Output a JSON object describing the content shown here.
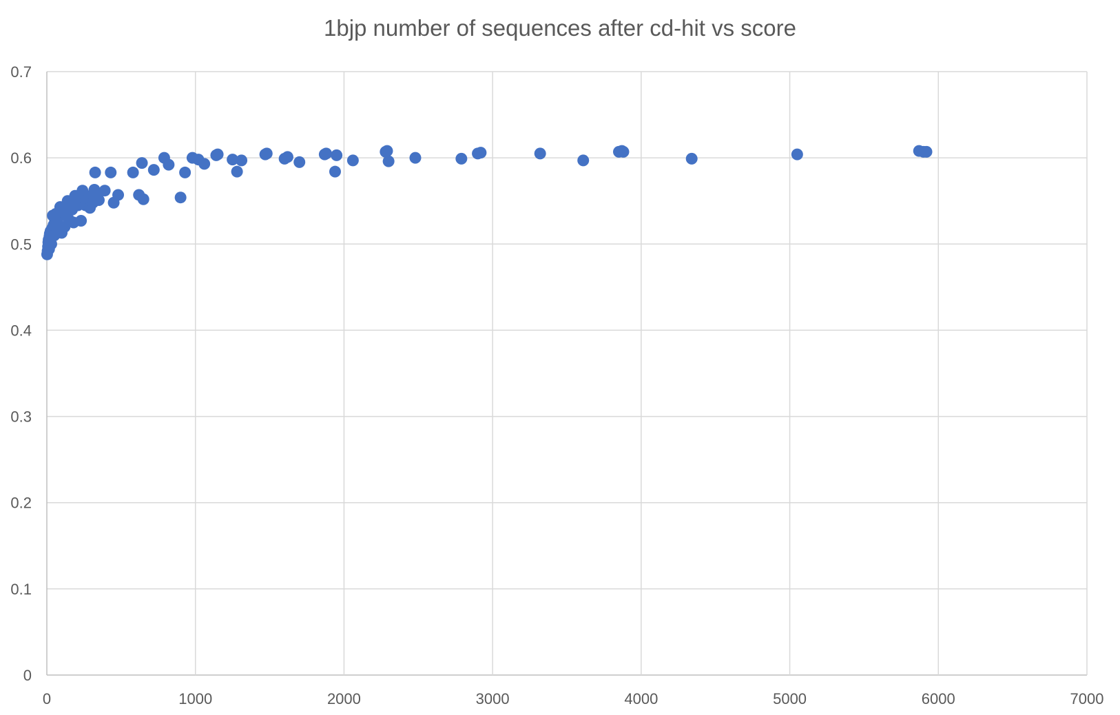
{
  "chart_data": {
    "type": "scatter",
    "title": "1bjp number of sequences after cd-hit vs score",
    "xlabel": "",
    "ylabel": "",
    "xlim": [
      0,
      7000
    ],
    "ylim": [
      0,
      0.7
    ],
    "x_ticks": [
      "0",
      "1000",
      "2000",
      "3000",
      "4000",
      "5000",
      "6000",
      "7000"
    ],
    "y_ticks": [
      "0",
      "0.1",
      "0.2",
      "0.3",
      "0.4",
      "0.5",
      "0.6",
      "0.7"
    ],
    "grid": true,
    "legend": "none",
    "marker_color": "#4472C4",
    "points": [
      [
        2,
        0.488
      ],
      [
        5,
        0.492
      ],
      [
        8,
        0.497
      ],
      [
        10,
        0.502
      ],
      [
        12,
        0.505
      ],
      [
        15,
        0.494
      ],
      [
        18,
        0.509
      ],
      [
        20,
        0.512
      ],
      [
        25,
        0.515
      ],
      [
        30,
        0.5
      ],
      [
        35,
        0.518
      ],
      [
        40,
        0.533
      ],
      [
        45,
        0.522
      ],
      [
        50,
        0.51
      ],
      [
        55,
        0.528
      ],
      [
        60,
        0.535
      ],
      [
        70,
        0.524
      ],
      [
        80,
        0.531
      ],
      [
        90,
        0.543
      ],
      [
        100,
        0.513
      ],
      [
        110,
        0.537
      ],
      [
        120,
        0.52
      ],
      [
        130,
        0.534
      ],
      [
        140,
        0.55
      ],
      [
        150,
        0.528
      ],
      [
        160,
        0.546
      ],
      [
        170,
        0.54
      ],
      [
        180,
        0.525
      ],
      [
        190,
        0.556
      ],
      [
        200,
        0.552
      ],
      [
        210,
        0.545
      ],
      [
        220,
        0.548
      ],
      [
        230,
        0.527
      ],
      [
        240,
        0.562
      ],
      [
        250,
        0.558
      ],
      [
        260,
        0.545
      ],
      [
        280,
        0.553
      ],
      [
        290,
        0.542
      ],
      [
        310,
        0.548
      ],
      [
        320,
        0.563
      ],
      [
        325,
        0.583
      ],
      [
        340,
        0.556
      ],
      [
        350,
        0.551
      ],
      [
        390,
        0.562
      ],
      [
        430,
        0.583
      ],
      [
        450,
        0.548
      ],
      [
        480,
        0.557
      ],
      [
        580,
        0.583
      ],
      [
        620,
        0.557
      ],
      [
        640,
        0.594
      ],
      [
        650,
        0.552
      ],
      [
        720,
        0.586
      ],
      [
        790,
        0.6
      ],
      [
        820,
        0.592
      ],
      [
        900,
        0.554
      ],
      [
        930,
        0.583
      ],
      [
        980,
        0.6
      ],
      [
        1020,
        0.598
      ],
      [
        1060,
        0.593
      ],
      [
        1140,
        0.603
      ],
      [
        1150,
        0.604
      ],
      [
        1250,
        0.598
      ],
      [
        1280,
        0.584
      ],
      [
        1310,
        0.597
      ],
      [
        1470,
        0.604
      ],
      [
        1480,
        0.605
      ],
      [
        1600,
        0.599
      ],
      [
        1620,
        0.601
      ],
      [
        1700,
        0.595
      ],
      [
        1870,
        0.604
      ],
      [
        1880,
        0.605
      ],
      [
        1940,
        0.584
      ],
      [
        1950,
        0.603
      ],
      [
        2060,
        0.597
      ],
      [
        2280,
        0.607
      ],
      [
        2290,
        0.608
      ],
      [
        2300,
        0.596
      ],
      [
        2480,
        0.6
      ],
      [
        2790,
        0.599
      ],
      [
        2900,
        0.605
      ],
      [
        2920,
        0.606
      ],
      [
        3320,
        0.605
      ],
      [
        3610,
        0.597
      ],
      [
        3850,
        0.607
      ],
      [
        3870,
        0.608
      ],
      [
        3880,
        0.607
      ],
      [
        4340,
        0.599
      ],
      [
        5050,
        0.604
      ],
      [
        5870,
        0.608
      ],
      [
        5900,
        0.607
      ],
      [
        5920,
        0.607
      ]
    ]
  }
}
